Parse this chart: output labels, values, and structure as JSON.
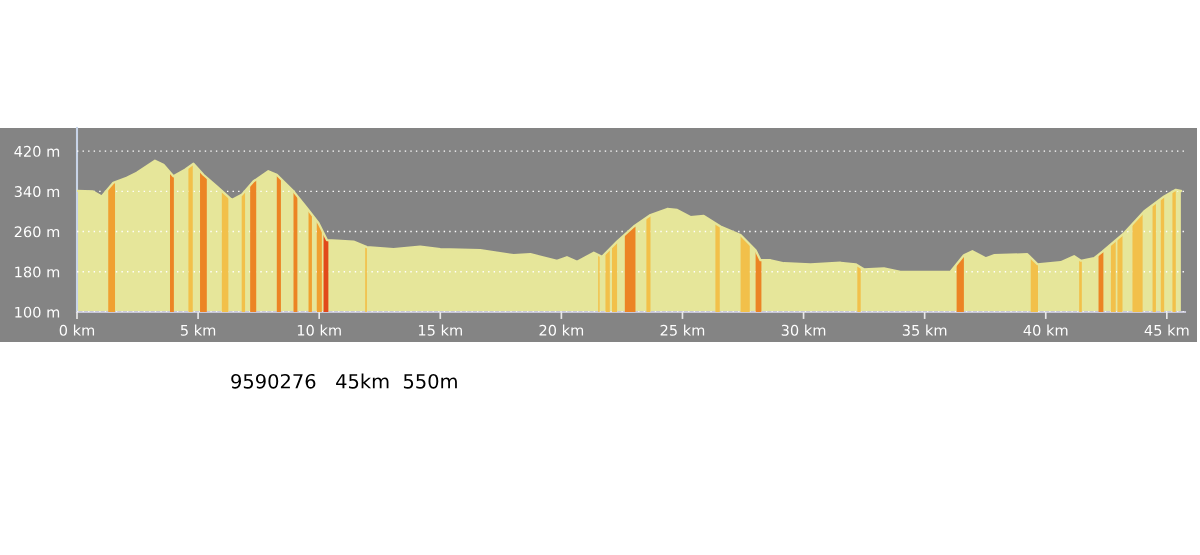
{
  "chart_data": {
    "type": "area",
    "x": [
      0,
      0.66,
      1.02,
      1.5,
      2.05,
      2.47,
      3.22,
      3.57,
      3.98,
      4.46,
      4.81,
      5.22,
      5.77,
      6.39,
      6.8,
      7.29,
      7.9,
      8.25,
      8.94,
      9.49,
      9.97,
      10.32,
      10.73,
      11.42,
      11.97,
      13.07,
      14.17,
      15.0,
      16.65,
      18.03,
      18.72,
      19.82,
      20.23,
      20.65,
      21.34,
      21.68,
      22.3,
      22.99,
      23.68,
      24.37,
      24.78,
      25.33,
      25.88,
      26.57,
      27.4,
      28.02,
      28.22,
      28.64,
      29.19,
      30.29,
      31.53,
      32.15,
      32.49,
      33.32,
      34.0,
      36.07,
      36.62,
      36.97,
      37.52,
      37.86,
      39.24,
      39.66,
      40.62,
      41.17,
      41.45,
      42.0,
      42.34,
      43.24,
      44.06,
      44.89,
      45.37,
      45.58
    ],
    "series": [
      {
        "color": "#e6e69a",
        "values": [
          341,
          340,
          330,
          357,
          367,
          377,
          401,
          393,
          370,
          383,
          395,
          373,
          350,
          323,
          333,
          360,
          380,
          373,
          340,
          307,
          277,
          243,
          242,
          240,
          229,
          225,
          230,
          225,
          223,
          213,
          215,
          202,
          209,
          200,
          218,
          210,
          240,
          270,
          293,
          305,
          303,
          289,
          291,
          270,
          253,
          223,
          203,
          203,
          197,
          195,
          198,
          195,
          185,
          187,
          180,
          180,
          213,
          221,
          207,
          213,
          215,
          195,
          199,
          211,
          202,
          207,
          220,
          257,
          300,
          330,
          343,
          341
        ]
      }
    ],
    "xlim": [
      0,
      45.75
    ],
    "ylim": [
      100,
      466
    ],
    "xticks": [
      {
        "value": 0,
        "label": "0 km"
      },
      {
        "value": 5,
        "label": "5 km"
      },
      {
        "value": 10,
        "label": "10 km"
      },
      {
        "value": 15,
        "label": "15 km"
      },
      {
        "value": 20,
        "label": "20 km"
      },
      {
        "value": 25,
        "label": "25 km"
      },
      {
        "value": 30,
        "label": "30 km"
      },
      {
        "value": 35,
        "label": "35 km"
      },
      {
        "value": 40,
        "label": "40 km"
      },
      {
        "value": 45,
        "label": "45 km"
      }
    ],
    "yticks": [
      {
        "value": 100,
        "label": "100 m"
      },
      {
        "value": 180,
        "label": "180 m"
      },
      {
        "value": 260,
        "label": "260 m"
      },
      {
        "value": 340,
        "label": "340 m"
      },
      {
        "value": 420,
        "label": "420 m"
      }
    ],
    "grid": "y",
    "legend": false,
    "bands": [
      {
        "axis": "x",
        "from": 1.29,
        "to": 1.57,
        "color": "#f0a030"
      },
      {
        "axis": "x",
        "from": 3.84,
        "to": 4.0,
        "color": "#ec8424"
      },
      {
        "axis": "x",
        "from": 4.6,
        "to": 4.78,
        "color": "#f2c04a"
      },
      {
        "axis": "x",
        "from": 5.08,
        "to": 5.36,
        "color": "#ec8424"
      },
      {
        "axis": "x",
        "from": 5.98,
        "to": 6.25,
        "color": "#f2c04a"
      },
      {
        "axis": "x",
        "from": 6.8,
        "to": 6.94,
        "color": "#f2c04a"
      },
      {
        "axis": "x",
        "from": 7.15,
        "to": 7.4,
        "color": "#ec8424"
      },
      {
        "axis": "x",
        "from": 8.25,
        "to": 8.42,
        "color": "#ec8424"
      },
      {
        "axis": "x",
        "from": 8.94,
        "to": 9.1,
        "color": "#ec8424"
      },
      {
        "axis": "x",
        "from": 9.56,
        "to": 9.7,
        "color": "#f0a030"
      },
      {
        "axis": "x",
        "from": 9.9,
        "to": 10.11,
        "color": "#f0a030"
      },
      {
        "axis": "x",
        "from": 10.18,
        "to": 10.38,
        "color": "#e2481a"
      },
      {
        "axis": "x",
        "from": 11.9,
        "to": 11.97,
        "color": "#f2c04a"
      },
      {
        "axis": "x",
        "from": 21.52,
        "to": 21.58,
        "color": "#f2c04a"
      },
      {
        "axis": "x",
        "from": 21.82,
        "to": 22.0,
        "color": "#f2c04a"
      },
      {
        "axis": "x",
        "from": 22.09,
        "to": 22.3,
        "color": "#f2c04a"
      },
      {
        "axis": "x",
        "from": 22.62,
        "to": 23.06,
        "color": "#ec8424"
      },
      {
        "axis": "x",
        "from": 23.51,
        "to": 23.68,
        "color": "#f2c04a"
      },
      {
        "axis": "x",
        "from": 26.36,
        "to": 26.54,
        "color": "#f2c04a"
      },
      {
        "axis": "x",
        "from": 27.4,
        "to": 27.78,
        "color": "#f2c04a"
      },
      {
        "axis": "x",
        "from": 28.02,
        "to": 28.26,
        "color": "#ec8424"
      },
      {
        "axis": "x",
        "from": 32.22,
        "to": 32.36,
        "color": "#f2c04a"
      },
      {
        "axis": "x",
        "from": 36.32,
        "to": 36.62,
        "color": "#ec8424"
      },
      {
        "axis": "x",
        "from": 39.38,
        "to": 39.68,
        "color": "#f2c04a"
      },
      {
        "axis": "x",
        "from": 41.38,
        "to": 41.49,
        "color": "#f2c04a"
      },
      {
        "axis": "x",
        "from": 42.18,
        "to": 42.38,
        "color": "#ec8424"
      },
      {
        "axis": "x",
        "from": 42.69,
        "to": 42.89,
        "color": "#f2c04a"
      },
      {
        "axis": "x",
        "from": 42.96,
        "to": 43.17,
        "color": "#f2c04a"
      },
      {
        "axis": "x",
        "from": 43.58,
        "to": 44.0,
        "color": "#f2c04a"
      },
      {
        "axis": "x",
        "from": 44.41,
        "to": 44.55,
        "color": "#f2c04a"
      },
      {
        "axis": "x",
        "from": 44.75,
        "to": 44.89,
        "color": "#f2c04a"
      },
      {
        "axis": "x",
        "from": 45.23,
        "to": 45.37,
        "color": "#f2c04a"
      }
    ],
    "annotations": [
      "9590276   45km  550m"
    ]
  }
}
